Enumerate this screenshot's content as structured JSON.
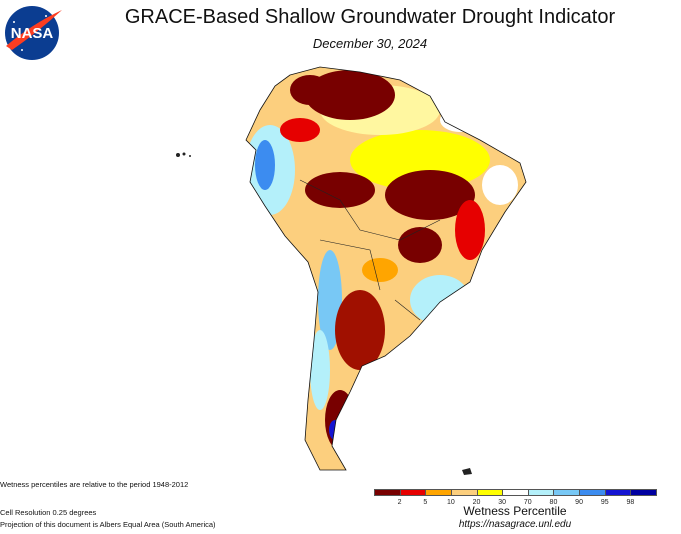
{
  "title": "GRACE-Based Shallow Groundwater Drought Indicator",
  "date": "December 30, 2024",
  "logo_text": "NASA",
  "notes": {
    "period": "Wetness percentiles are relative to the period 1948-2012",
    "resolution": "Cell Resolution 0.25 degrees",
    "projection": "Projection of this document is Albers Equal Area (South America)"
  },
  "legend": {
    "title": "Wetness Percentile",
    "colors": [
      "#780000",
      "#e60000",
      "#ffa500",
      "#fccf7e",
      "#ffff00",
      "#ffffff",
      "#b4f0fa",
      "#78c8f5",
      "#3c8cf0",
      "#1414d2",
      "#0000a0"
    ],
    "ticks": [
      "2",
      "5",
      "10",
      "20",
      "30",
      "70",
      "80",
      "90",
      "95",
      "98"
    ]
  },
  "url": "https://nasagrace.unl.edu"
}
